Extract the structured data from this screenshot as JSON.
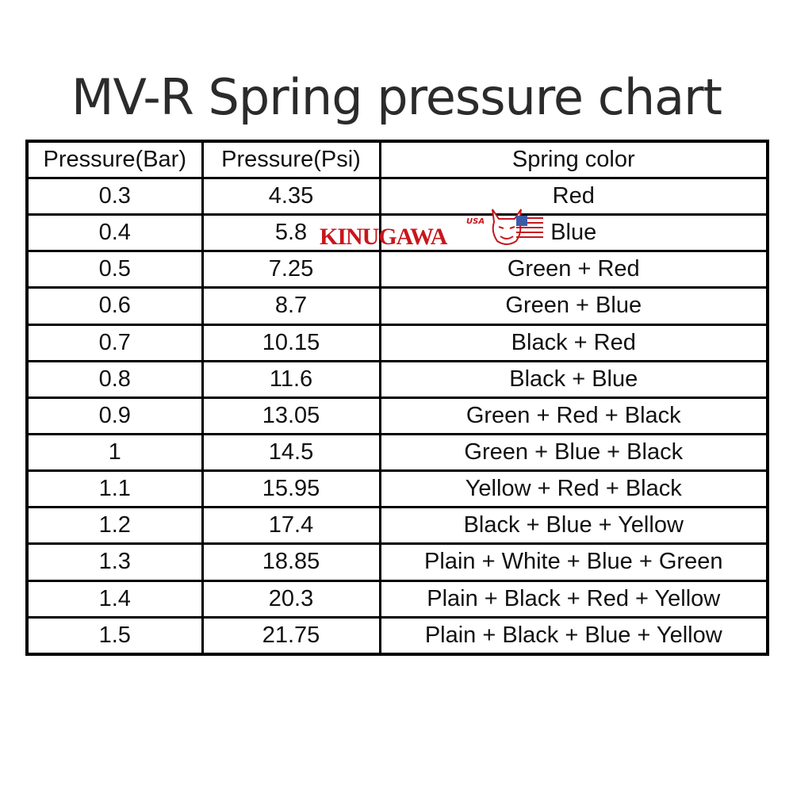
{
  "title": "MV-R Spring pressure chart",
  "logo": {
    "text": "KINUGAWA",
    "sub": "USA",
    "color": "#c8161d"
  },
  "table": {
    "headers": [
      "Pressure(Bar)",
      "Pressure(Psi)",
      "Spring color"
    ],
    "rows": [
      [
        "0.3",
        "4.35",
        "Red"
      ],
      [
        "0.4",
        "5.8",
        "Blue"
      ],
      [
        "0.5",
        "7.25",
        "Green + Red"
      ],
      [
        "0.6",
        "8.7",
        "Green + Blue"
      ],
      [
        "0.7",
        "10.15",
        "Black + Red"
      ],
      [
        "0.8",
        "11.6",
        "Black + Blue"
      ],
      [
        "0.9",
        "13.05",
        "Green + Red + Black"
      ],
      [
        "1",
        "14.5",
        "Green + Blue + Black"
      ],
      [
        "1.1",
        "15.95",
        "Yellow + Red + Black"
      ],
      [
        "1.2",
        "17.4",
        "Black + Blue + Yellow"
      ],
      [
        "1.3",
        "18.85",
        "Plain + White + Blue + Green"
      ],
      [
        "1.4",
        "20.3",
        "Plain + Black + Red + Yellow"
      ],
      [
        "1.5",
        "21.75",
        "Plain + Black + Blue + Yellow"
      ]
    ]
  }
}
